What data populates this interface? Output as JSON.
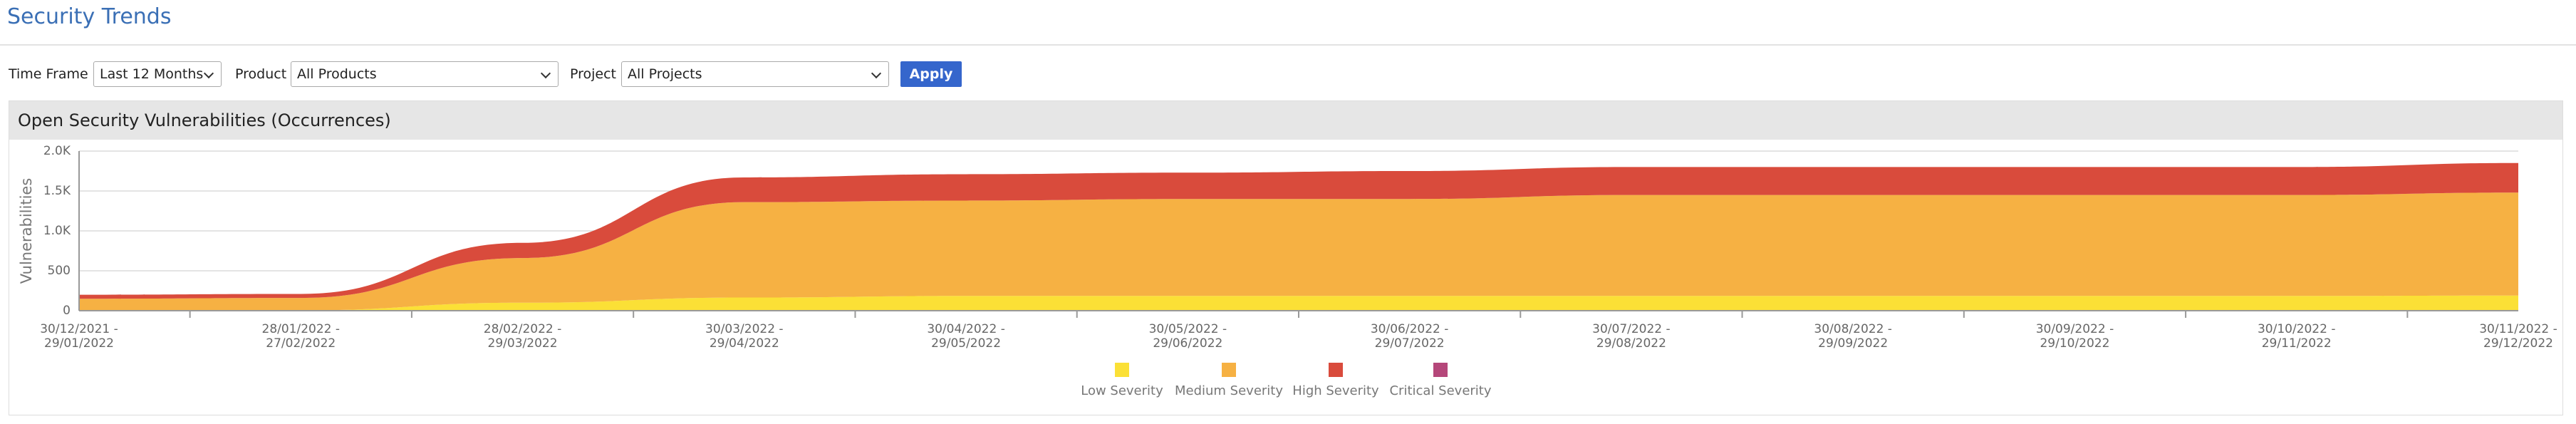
{
  "header": {
    "title": "Security Trends"
  },
  "filters": {
    "time_frame_label": "Time Frame",
    "time_frame_value": "Last 12 Months",
    "product_label": "Product",
    "product_value": "All Products",
    "project_label": "Project",
    "project_value": "All Projects",
    "apply": "Apply"
  },
  "panel": {
    "title": "Open Security Vulnerabilities (Occurrences)"
  },
  "chart_data": {
    "type": "stacked_area",
    "y_label": "Vulnerabilities",
    "categories": [
      "30/12/2021 - 29/01/2022",
      "28/01/2022 - 27/02/2022",
      "28/02/2022 - 29/03/2022",
      "30/03/2022 - 29/04/2022",
      "30/04/2022 - 29/05/2022",
      "30/05/2022 - 29/06/2022",
      "30/06/2022 - 29/07/2022",
      "30/07/2022 - 29/08/2022",
      "30/08/2022 - 29/09/2022",
      "30/09/2022 - 29/10/2022",
      "30/10/2022 - 29/11/2022",
      "30/11/2022 - 29/12/2022"
    ],
    "series": [
      {
        "name": "Low Severity",
        "color": "#fbe036",
        "values": [
          0,
          5,
          100,
          165,
          185,
          185,
          185,
          185,
          185,
          185,
          185,
          190
        ]
      },
      {
        "name": "Medium Severity",
        "color": "#f6b143",
        "values": [
          150,
          155,
          560,
          1195,
          1195,
          1215,
          1215,
          1265,
          1265,
          1265,
          1265,
          1290
        ]
      },
      {
        "name": "High Severity",
        "color": "#d94b3c",
        "values": [
          50,
          50,
          190,
          310,
          330,
          330,
          350,
          350,
          350,
          350,
          350,
          370
        ]
      },
      {
        "name": "Critical Severity",
        "color": "#b5477a",
        "values": [
          0,
          0,
          0,
          0,
          0,
          0,
          0,
          0,
          0,
          0,
          0,
          0
        ]
      }
    ],
    "ylim": [
      0,
      2000
    ],
    "yticks": [
      0,
      500,
      {
        "value": 1000,
        "label": "1.0K"
      },
      {
        "value": 1500,
        "label": "1.5K"
      },
      {
        "value": 2000,
        "label": "2.0K"
      }
    ],
    "grid": true
  }
}
